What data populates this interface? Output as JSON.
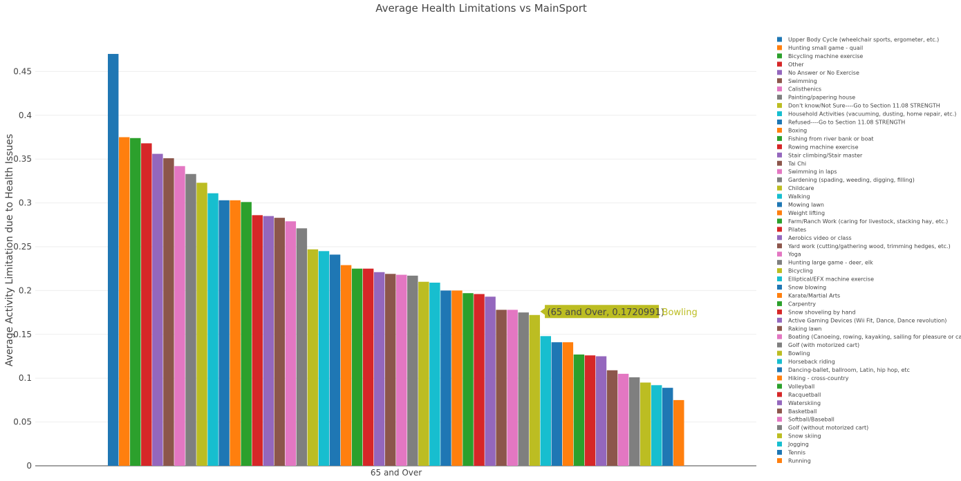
{
  "chart_data": {
    "type": "bar",
    "title": "Average Health Limitations vs MainSport",
    "xlabel": "",
    "ylabel": "Average Activity Limitation due to Health Issues",
    "categories": [
      "65 and Over"
    ],
    "ylim": [
      0,
      0.5
    ],
    "yticks": [
      0,
      0.05,
      0.1,
      0.15,
      0.2,
      0.25,
      0.3,
      0.35,
      0.4,
      0.45
    ],
    "ytick_labels": [
      "0",
      "0.05",
      "0.1",
      "0.15",
      "0.2",
      "0.25",
      "0.3",
      "0.35",
      "0.4",
      "0.45"
    ],
    "grid": true,
    "legend_position": "right",
    "series": [
      {
        "name": "Upper Body Cycle (wheelchair sports, ergometer, etc.)",
        "values": [
          0.47
        ],
        "color": "#1f77b4"
      },
      {
        "name": "Hunting small game - quail",
        "values": [
          0.375
        ],
        "color": "#ff7f0e"
      },
      {
        "name": "Bicycling machine exercise",
        "values": [
          0.374
        ],
        "color": "#2ca02c"
      },
      {
        "name": "Other",
        "values": [
          0.368
        ],
        "color": "#d62728"
      },
      {
        "name": "No Answer or No Exercise",
        "values": [
          0.356
        ],
        "color": "#9467bd"
      },
      {
        "name": "Swimming",
        "values": [
          0.351
        ],
        "color": "#8c564b"
      },
      {
        "name": "Calisthenics",
        "values": [
          0.342
        ],
        "color": "#e377c2"
      },
      {
        "name": "Painting/papering house",
        "values": [
          0.333
        ],
        "color": "#7f7f7f"
      },
      {
        "name": "Don't know/Not Sure----Go to Section 11.08 STRENGTH",
        "values": [
          0.323
        ],
        "color": "#bcbd22"
      },
      {
        "name": "Household Activities (vacuuming, dusting, home repair, etc.)",
        "values": [
          0.311
        ],
        "color": "#17becf"
      },
      {
        "name": "Refused----Go to Section 11.08 STRENGTH",
        "values": [
          0.303
        ],
        "color": "#1f77b4"
      },
      {
        "name": "Boxing",
        "values": [
          0.303
        ],
        "color": "#ff7f0e"
      },
      {
        "name": "Fishing from river bank or boat",
        "values": [
          0.301
        ],
        "color": "#2ca02c"
      },
      {
        "name": "Rowing machine exercise",
        "values": [
          0.286
        ],
        "color": "#d62728"
      },
      {
        "name": "Stair climbing/Stair master",
        "values": [
          0.285
        ],
        "color": "#9467bd"
      },
      {
        "name": "Tai Chi",
        "values": [
          0.283
        ],
        "color": "#8c564b"
      },
      {
        "name": "Swimming in laps",
        "values": [
          0.279
        ],
        "color": "#e377c2"
      },
      {
        "name": "Gardening (spading, weeding, digging, filling)",
        "values": [
          0.271
        ],
        "color": "#7f7f7f"
      },
      {
        "name": "Childcare",
        "values": [
          0.247
        ],
        "color": "#bcbd22"
      },
      {
        "name": "Walking",
        "values": [
          0.245
        ],
        "color": "#17becf"
      },
      {
        "name": "Mowing lawn",
        "values": [
          0.241
        ],
        "color": "#1f77b4"
      },
      {
        "name": "Weight lifting",
        "values": [
          0.229
        ],
        "color": "#ff7f0e"
      },
      {
        "name": "Farm/Ranch Work (caring for livestock, stacking hay, etc.)",
        "values": [
          0.225
        ],
        "color": "#2ca02c"
      },
      {
        "name": "Pilates",
        "values": [
          0.225
        ],
        "color": "#d62728"
      },
      {
        "name": "Aerobics video or class",
        "values": [
          0.221
        ],
        "color": "#9467bd"
      },
      {
        "name": "Yard work (cutting/gathering wood, trimming hedges, etc.)",
        "values": [
          0.219
        ],
        "color": "#8c564b"
      },
      {
        "name": "Yoga",
        "values": [
          0.218
        ],
        "color": "#e377c2"
      },
      {
        "name": "Hunting large game - deer, elk",
        "values": [
          0.217
        ],
        "color": "#7f7f7f"
      },
      {
        "name": "Bicycling",
        "values": [
          0.21
        ],
        "color": "#bcbd22"
      },
      {
        "name": "Elliptical/EFX machine exercise",
        "values": [
          0.209
        ],
        "color": "#17becf"
      },
      {
        "name": "Snow blowing",
        "values": [
          0.2
        ],
        "color": "#1f77b4"
      },
      {
        "name": "Karate/Martial Arts",
        "values": [
          0.2
        ],
        "color": "#ff7f0e"
      },
      {
        "name": "Carpentry",
        "values": [
          0.197
        ],
        "color": "#2ca02c"
      },
      {
        "name": "Snow shoveling by hand",
        "values": [
          0.196
        ],
        "color": "#d62728"
      },
      {
        "name": "Active Gaming Devices (Wii Fit, Dance, Dance revolution)",
        "values": [
          0.193
        ],
        "color": "#9467bd"
      },
      {
        "name": "Raking lawn",
        "values": [
          0.178
        ],
        "color": "#8c564b"
      },
      {
        "name": "Boating (Canoeing, rowing, kayaking, sailing for pleasure or camping)",
        "values": [
          0.178
        ],
        "color": "#e377c2"
      },
      {
        "name": "Golf (with motorized cart)",
        "values": [
          0.175
        ],
        "color": "#7f7f7f"
      },
      {
        "name": "Bowling",
        "values": [
          0.1720991
        ],
        "color": "#bcbd22"
      },
      {
        "name": "Horseback riding",
        "values": [
          0.148
        ],
        "color": "#17becf"
      },
      {
        "name": "Dancing-ballet, ballroom, Latin, hip hop, etc",
        "values": [
          0.141
        ],
        "color": "#1f77b4"
      },
      {
        "name": "Hiking - cross-country",
        "values": [
          0.141
        ],
        "color": "#ff7f0e"
      },
      {
        "name": "Volleyball",
        "values": [
          0.127
        ],
        "color": "#2ca02c"
      },
      {
        "name": "Racquetball",
        "values": [
          0.126
        ],
        "color": "#d62728"
      },
      {
        "name": "Waterskiing",
        "values": [
          0.125
        ],
        "color": "#9467bd"
      },
      {
        "name": "Basketball",
        "values": [
          0.109
        ],
        "color": "#8c564b"
      },
      {
        "name": "Softball/Baseball",
        "values": [
          0.105
        ],
        "color": "#e377c2"
      },
      {
        "name": "Golf (without motorized cart)",
        "values": [
          0.101
        ],
        "color": "#7f7f7f"
      },
      {
        "name": "Snow skiing",
        "values": [
          0.095
        ],
        "color": "#bcbd22"
      },
      {
        "name": "Jogging",
        "values": [
          0.092
        ],
        "color": "#17becf"
      },
      {
        "name": "Tennis",
        "values": [
          0.089
        ],
        "color": "#1f77b4"
      },
      {
        "name": "Running",
        "values": [
          0.075
        ],
        "color": "#ff7f0e"
      }
    ],
    "hover": {
      "series": "Bowling",
      "label": "(65 and Over, 0.1720991)",
      "name": "Bowling",
      "color": "#bcbd22"
    }
  }
}
